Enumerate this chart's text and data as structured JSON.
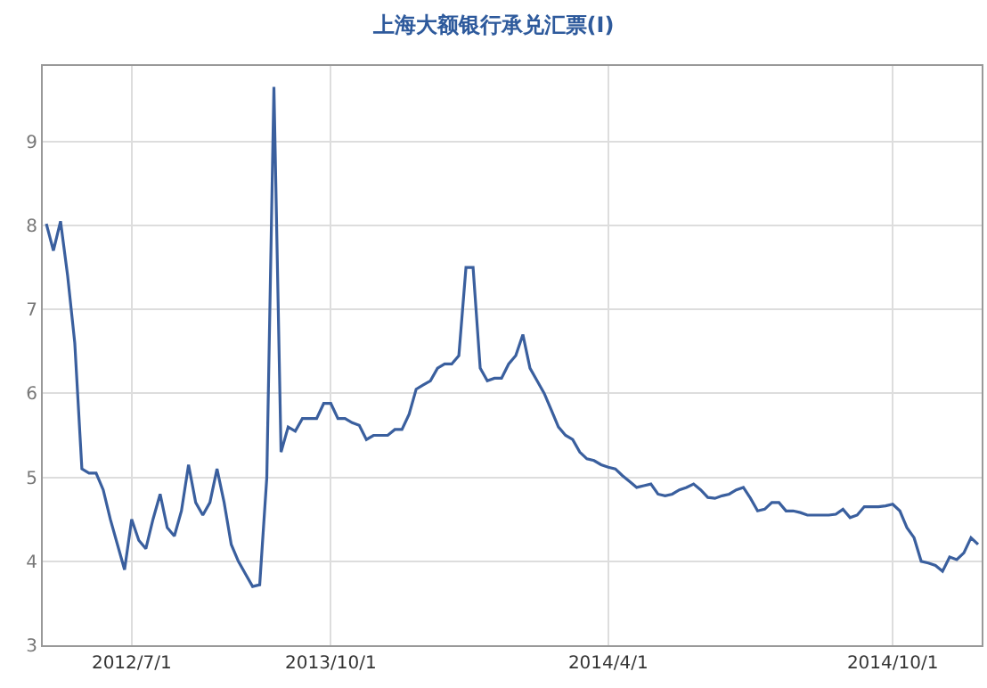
{
  "chart_data": {
    "type": "line",
    "title": "上海大额银行承兑汇票(Ⅰ)",
    "categories": [
      null,
      null,
      null,
      null,
      null,
      null,
      null,
      null,
      null,
      null,
      null,
      null,
      "2012/7/1",
      null,
      null,
      null,
      null,
      null,
      null,
      null,
      null,
      null,
      null,
      null,
      null,
      null,
      null,
      null,
      null,
      null,
      null,
      null,
      null,
      null,
      null,
      null,
      null,
      null,
      null,
      null,
      "2013/10/1",
      null,
      null,
      null,
      null,
      null,
      null,
      null,
      null,
      null,
      null,
      null,
      null,
      null,
      null,
      null,
      null,
      null,
      null,
      null,
      null,
      null,
      null,
      null,
      null,
      null,
      null,
      null,
      null,
      null,
      null,
      null,
      null,
      null,
      null,
      null,
      null,
      null,
      null,
      "2014/4/1",
      null,
      null,
      null,
      null,
      null,
      null,
      null,
      null,
      null,
      null,
      null,
      null,
      null,
      null,
      null,
      null,
      null,
      null,
      null,
      null,
      null,
      null,
      null,
      null,
      null,
      null,
      null,
      null,
      null,
      null,
      null,
      null,
      null,
      null,
      null,
      null,
      null,
      null,
      null,
      "2014/10/1",
      null,
      null,
      null,
      null,
      null,
      null,
      null,
      null,
      null,
      null,
      null,
      null
    ],
    "series": [
      {
        "color": "#3a5f9e",
        "values": [
          8.02,
          7.7,
          8.05,
          7.4,
          6.6,
          5.1,
          5.05,
          5.05,
          4.85,
          4.5,
          4.2,
          3.9,
          4.5,
          4.25,
          4.15,
          4.5,
          4.8,
          4.4,
          4.3,
          4.6,
          5.15,
          4.7,
          4.55,
          4.7,
          5.1,
          4.7,
          4.2,
          4.0,
          3.85,
          3.7,
          3.72,
          5.0,
          9.65,
          5.3,
          5.6,
          5.55,
          5.7,
          5.7,
          5.7,
          5.88,
          5.88,
          5.7,
          5.7,
          5.65,
          5.62,
          5.45,
          5.5,
          5.5,
          5.5,
          5.57,
          5.57,
          5.75,
          6.05,
          6.1,
          6.15,
          6.3,
          6.35,
          6.35,
          6.45,
          7.5,
          7.5,
          6.3,
          6.15,
          6.18,
          6.18,
          6.35,
          6.45,
          6.7,
          6.3,
          6.15,
          6.0,
          5.8,
          5.6,
          5.5,
          5.45,
          5.3,
          5.22,
          5.2,
          5.15,
          5.12,
          5.1,
          5.02,
          4.95,
          4.88,
          4.9,
          4.92,
          4.8,
          4.78,
          4.8,
          4.85,
          4.88,
          4.92,
          4.85,
          4.76,
          4.75,
          4.78,
          4.8,
          4.85,
          4.88,
          4.75,
          4.6,
          4.62,
          4.7,
          4.7,
          4.6,
          4.6,
          4.58,
          4.55,
          4.55,
          4.55,
          4.55,
          4.56,
          4.62,
          4.52,
          4.55,
          4.65,
          4.65,
          4.65,
          4.66,
          4.68,
          4.6,
          4.4,
          4.28,
          4.0,
          3.98,
          3.95,
          3.88,
          4.05,
          4.02,
          4.1,
          4.28,
          4.2
        ]
      }
    ],
    "ylim": [
      3,
      9.9
    ],
    "yticks": [
      3,
      4,
      5,
      6,
      7,
      8,
      9
    ],
    "grid": true,
    "marker": "none",
    "line_style": "solid"
  }
}
